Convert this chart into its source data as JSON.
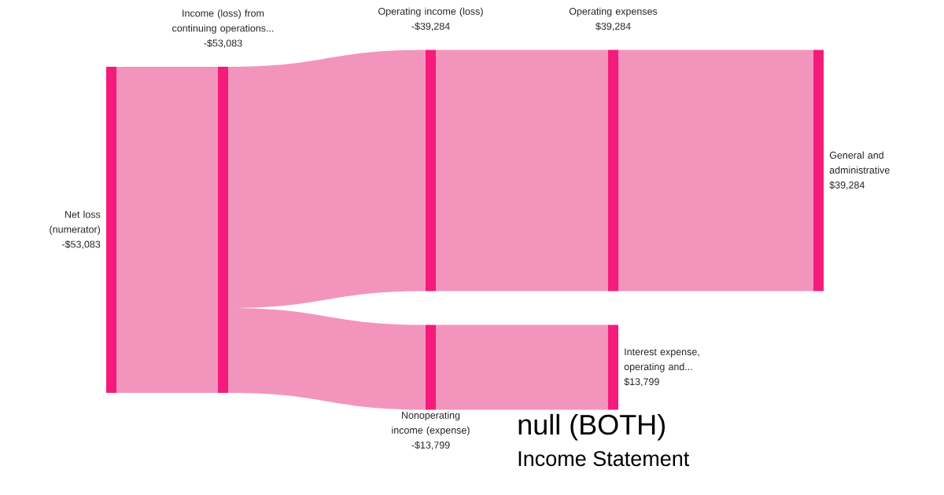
{
  "chart_data": {
    "type": "other",
    "title": "null (BOTH)",
    "subtitle": "Income Statement",
    "categories": [
      "Net loss (numerator)",
      "Income (loss) from continuing operations...",
      "Operating income (loss)",
      "Operating expenses",
      "General and administrative",
      "Nonoperating income (expense)",
      "Interest expense, operating and..."
    ],
    "series": [
      {
        "color": "#f41b7a",
        "values": [
          -53083,
          null,
          null,
          null,
          null,
          null,
          null
        ],
        "value_labels": [
          "-$53,083",
          null,
          null,
          null,
          null,
          null,
          null
        ]
      },
      {
        "color": "#f41b7a",
        "values": [
          null,
          -53083,
          null,
          null,
          null,
          null,
          null
        ],
        "value_labels": [
          null,
          "-$53,083",
          null,
          null,
          null,
          null,
          null
        ]
      },
      {
        "color": "#f41b7a",
        "values": [
          null,
          null,
          -39284,
          null,
          null,
          -13799,
          null
        ],
        "value_labels": [
          null,
          null,
          "-$39,284",
          null,
          null,
          "-$13,799",
          null
        ]
      },
      {
        "color": "#f41b7a",
        "values": [
          null,
          null,
          null,
          39284,
          null,
          null,
          13799
        ],
        "value_labels": [
          null,
          null,
          null,
          "$39,284",
          null,
          null,
          "$13,799"
        ]
      },
      {
        "color": "#f41b7a",
        "values": [
          null,
          null,
          null,
          null,
          39284,
          null,
          null
        ],
        "value_labels": [
          null,
          null,
          null,
          null,
          "$39,284",
          null,
          null
        ]
      }
    ]
  }
}
